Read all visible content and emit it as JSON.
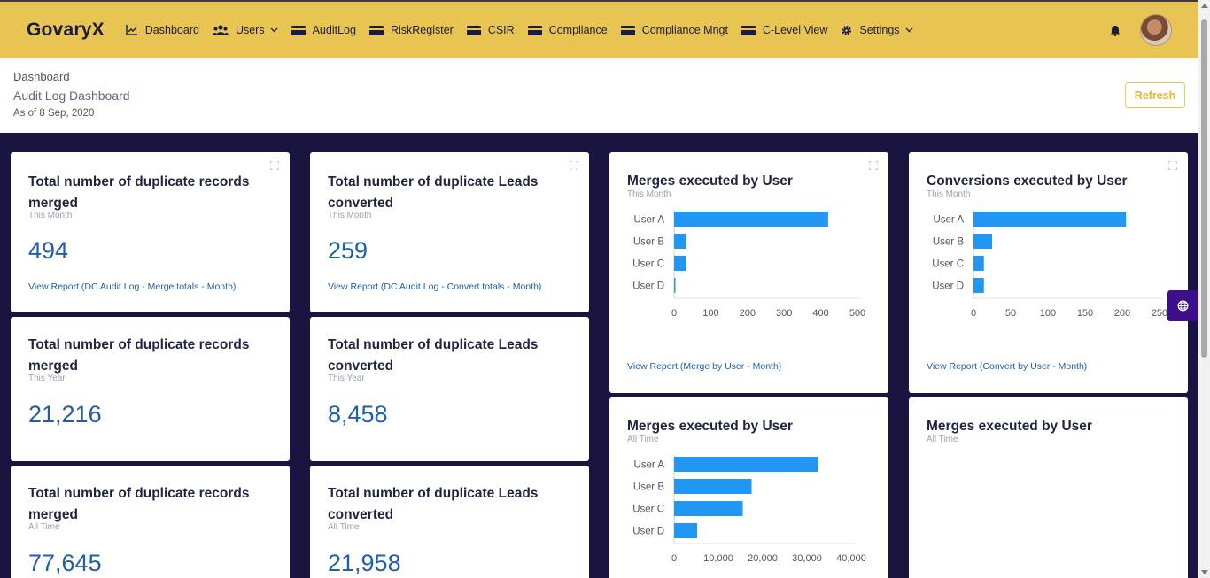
{
  "nav": {
    "brand": "GovaryX",
    "items": [
      {
        "label": "Dashboard",
        "icon": "line-chart-icon"
      },
      {
        "label": "Users",
        "icon": "users-icon",
        "dropdown": true
      },
      {
        "label": "AuditLog",
        "icon": "card-icon"
      },
      {
        "label": "RiskRegister",
        "icon": "card-icon"
      },
      {
        "label": "CSIR",
        "icon": "card-icon"
      },
      {
        "label": "Compliance",
        "icon": "card-icon"
      },
      {
        "label": "Compliance Mngt",
        "icon": "card-icon"
      },
      {
        "label": "C-Level View",
        "icon": "card-icon"
      },
      {
        "label": "Settings",
        "icon": "gear-icon",
        "dropdown": true
      }
    ]
  },
  "header": {
    "breadcrumb": "Dashboard",
    "title": "Audit Log Dashboard",
    "as_of": "As of 8 Sep, 2020",
    "refresh_label": "Refresh"
  },
  "stats": {
    "merged_month": {
      "title": "Total number of duplicate records merged",
      "period": "This Month",
      "value": "494",
      "link": "View Report (DC Audit Log - Merge totals - Month)"
    },
    "converted_month": {
      "title": "Total number of duplicate Leads converted",
      "period": "This Month",
      "value": "259",
      "link": "View Report (DC Audit Log - Convert totals - Month)"
    },
    "merged_year": {
      "title": "Total number of duplicate records merged",
      "period": "This Year",
      "value": "21,216"
    },
    "converted_year": {
      "title": "Total number of duplicate Leads converted",
      "period": "This Year",
      "value": "8,458"
    },
    "merged_all": {
      "title": "Total number of duplicate records merged",
      "period": "All Time",
      "value": "77,645"
    },
    "converted_all": {
      "title": "Total number of duplicate Leads converted",
      "period": "All Time",
      "value": "21,958"
    }
  },
  "charts": {
    "merges_month": {
      "title": "Merges executed by User",
      "period": "This Month",
      "link": "View Report (Merge by User - Month)"
    },
    "conversions_month": {
      "title": "Conversions executed by User",
      "period": "This Month",
      "link": "View Report (Convert by User - Month)"
    },
    "merges_all": {
      "title": "Merges executed by User",
      "period": "All Time"
    },
    "merges_all_2": {
      "title": "Merges executed by User",
      "period": "All Time"
    }
  },
  "colors": {
    "accent": "#e8c552",
    "bar": "#2196f3",
    "value": "#1f5fa8",
    "background": "#1a1440"
  },
  "chart_data": [
    {
      "type": "bar",
      "orientation": "horizontal",
      "title": "Merges executed by User",
      "subtitle": "This Month",
      "categories": [
        "User A",
        "User B",
        "User C",
        "User D"
      ],
      "values": [
        420,
        33,
        33,
        3
      ],
      "xlim": [
        0,
        500
      ],
      "ticks": [
        "0",
        "100",
        "200",
        "300",
        "400",
        "500"
      ]
    },
    {
      "type": "bar",
      "orientation": "horizontal",
      "title": "Conversions executed by User",
      "subtitle": "This Month",
      "categories": [
        "User A",
        "User B",
        "User C",
        "User D"
      ],
      "values": [
        205,
        25,
        14,
        14
      ],
      "xlim": [
        0,
        250
      ],
      "ticks": [
        "0",
        "50",
        "100",
        "150",
        "200",
        "250"
      ]
    },
    {
      "type": "bar",
      "orientation": "horizontal",
      "title": "Merges executed by User",
      "subtitle": "All Time",
      "categories": [
        "User A",
        "User B",
        "User C",
        "User D"
      ],
      "values": [
        32500,
        17500,
        15500,
        5200
      ],
      "xlim": [
        0,
        40000
      ],
      "ticks": [
        "0",
        "10,000",
        "20,000",
        "30,000",
        "40,000"
      ]
    }
  ]
}
